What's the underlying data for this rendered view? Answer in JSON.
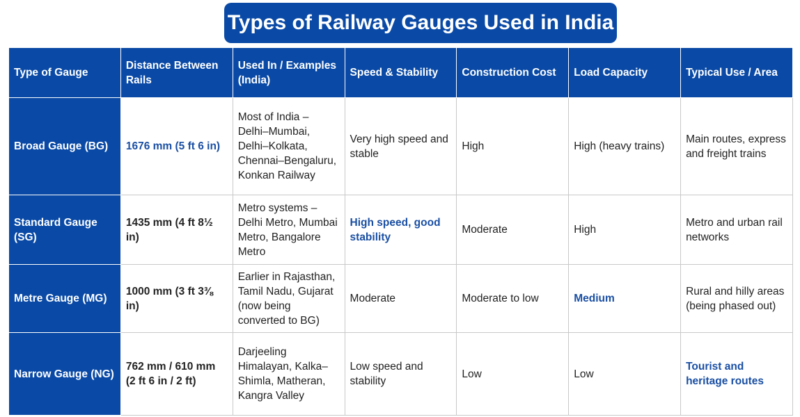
{
  "header": {
    "title": "Types of Railway Gauges Used in India"
  },
  "table": {
    "columns": [
      "Type of Gauge",
      "Distance Between Rails",
      "Used In / Examples (India)",
      "Speed & Stability",
      "Construction Cost",
      "Load Capacity",
      "Typical Use / Area"
    ],
    "rows": [
      [
        "Broad Gauge (BG)",
        "1676 mm (5 ft 6 in)",
        "Most of India – Delhi–Mumbai, Delhi–Kolkata, Chennai–Bengaluru, Konkan Railway",
        "Very high speed and stable",
        "High",
        "High (heavy trains)",
        "Main routes, express and freight trains"
      ],
      [
        "Standard Gauge (SG)",
        "1435 mm (4 ft 8½ in)",
        "Metro systems – Delhi Metro, Mumbai Metro, Bangalore Metro",
        "High speed, good stability",
        "Moderate",
        "High",
        "Metro and urban rail networks"
      ],
      [
        "Metre Gauge (MG)",
        "1000 mm (3 ft 3⅜ in)",
        "Earlier in Rajasthan, Tamil Nadu, Gujarat (now being converted to BG)",
        "Moderate",
        "Moderate to low",
        "Medium",
        "Rural and hilly areas (being phased out)"
      ],
      [
        "Narrow Gauge (NG)",
        "762 mm / 610 mm (2 ft 6 in / 2 ft)",
        "Darjeeling Himalayan, Kalka–Shimla, Matheran, Kangra Valley",
        "Low speed and stability",
        "Low",
        "Low",
        "Tourist and heritage routes"
      ]
    ]
  }
}
